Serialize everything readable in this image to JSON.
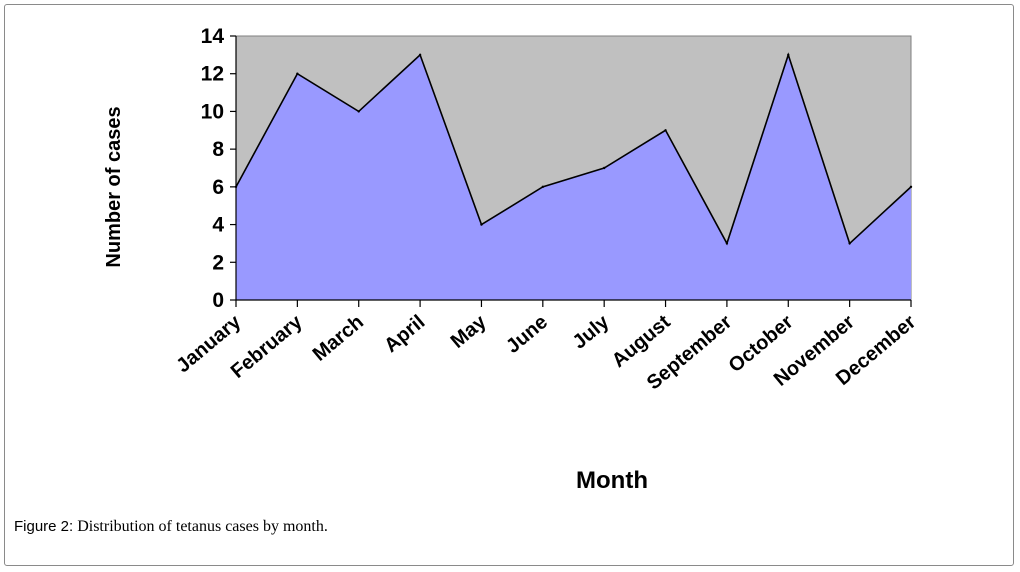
{
  "chart_data": {
    "type": "area",
    "categories": [
      "January",
      "February",
      "March",
      "April",
      "May",
      "June",
      "July",
      "August",
      "September",
      "October",
      "November",
      "December"
    ],
    "series": [
      {
        "values": [
          6,
          12,
          10,
          13,
          4,
          6,
          7,
          9,
          3,
          13,
          3,
          6
        ]
      }
    ],
    "xlabel": "Month",
    "ylabel": "Number of cases",
    "ylim": [
      0,
      14
    ],
    "yticks": [
      0,
      2,
      4,
      6,
      8,
      10,
      12,
      14
    ],
    "grid": false,
    "legend": "none",
    "colors": {
      "area_fill": "#9999ff",
      "plot_background": "#c0c0c0",
      "line": "#000000"
    }
  },
  "caption": {
    "label": "Figure 2:",
    "text": " Distribution of tetanus cases by month."
  }
}
